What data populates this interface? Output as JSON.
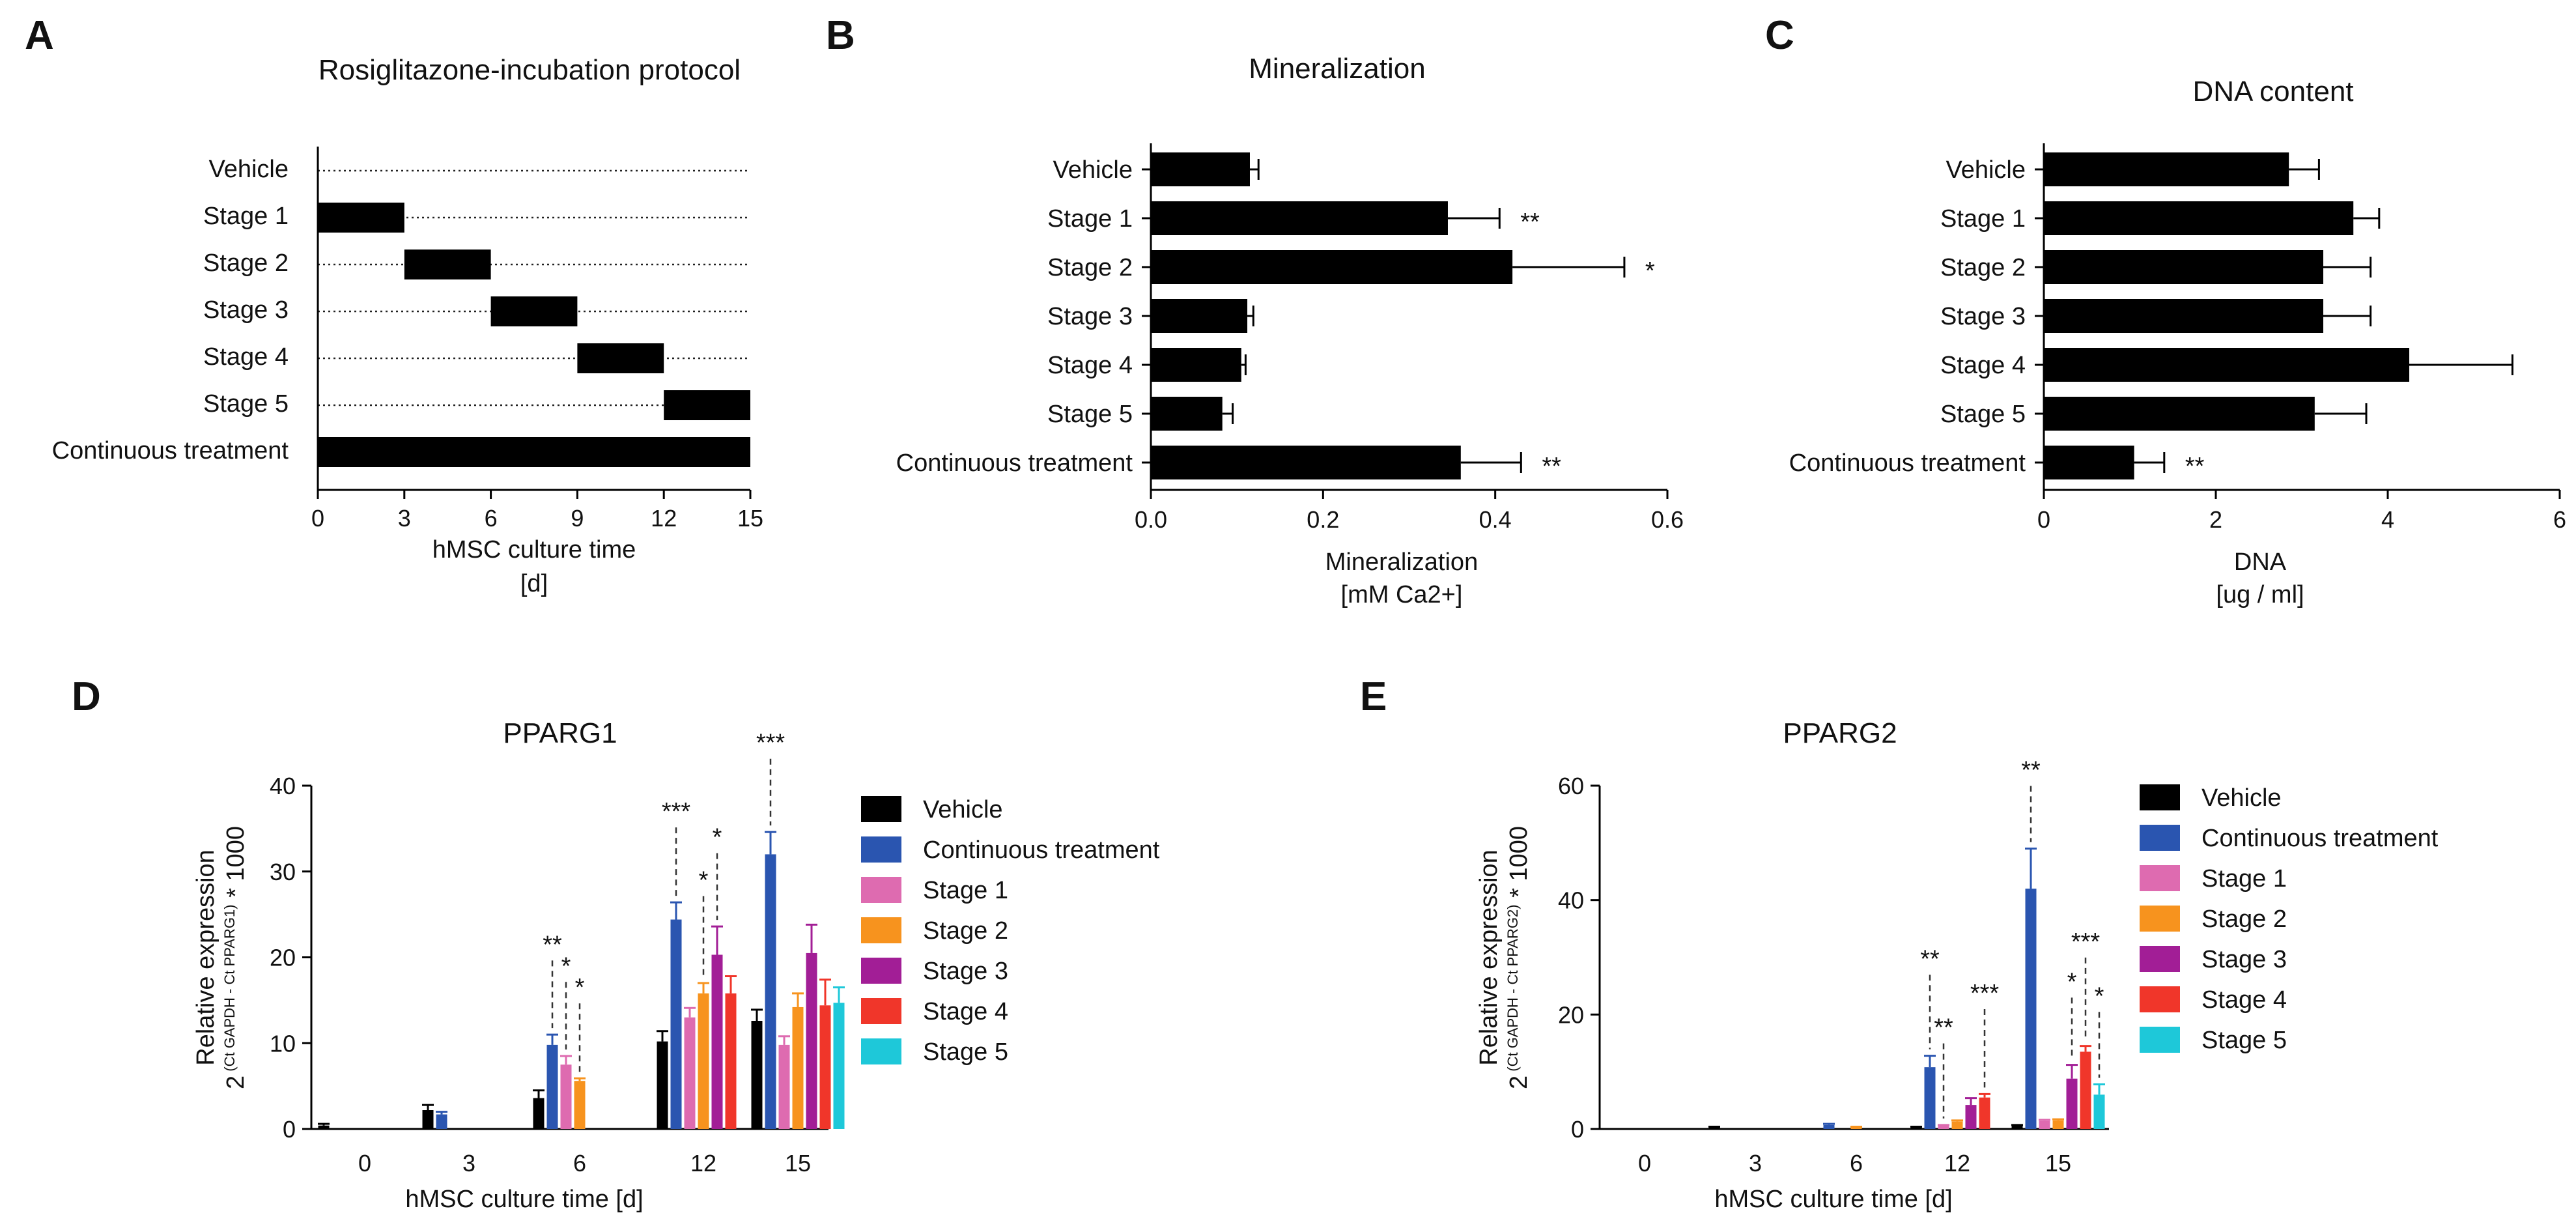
{
  "colors": {
    "bar": "#000000",
    "vehicle": "#000000",
    "continuous": "#2a55b0",
    "stage1": "#de6bb0",
    "stage2": "#f7931e",
    "stage3": "#a21e96",
    "stage4": "#f0362a",
    "stage5": "#1ec8d9"
  },
  "chart_data": [
    {
      "panel": "A",
      "type": "gantt",
      "title": "Rosiglitazone-incubation protocol",
      "xlabel": "hMSC culture time",
      "xunit": "[d]",
      "xlim": [
        0,
        15
      ],
      "xticks": [
        "0",
        "3",
        "6",
        "9",
        "12",
        "15"
      ],
      "rows": [
        {
          "label": "Vehicle",
          "start": null,
          "end": null
        },
        {
          "label": "Stage 1",
          "start": 0,
          "end": 3
        },
        {
          "label": "Stage 2",
          "start": 3,
          "end": 6
        },
        {
          "label": "Stage 3",
          "start": 6,
          "end": 9
        },
        {
          "label": "Stage 4",
          "start": 9,
          "end": 12
        },
        {
          "label": "Stage 5",
          "start": 12,
          "end": 15
        },
        {
          "label": "Continuous treatment",
          "start": 0,
          "end": 15
        }
      ]
    },
    {
      "panel": "B",
      "type": "bar",
      "orientation": "horizontal",
      "title": "Mineralization",
      "xlabel": "Mineralization",
      "xunit": "[mM Ca2+]",
      "xlim": [
        0,
        0.6
      ],
      "xticks": [
        "0.0",
        "0.2",
        "0.4",
        "0.6"
      ],
      "categories": [
        "Vehicle",
        "Stage 1",
        "Stage 2",
        "Stage 3",
        "Stage 4",
        "Stage 5",
        "Continuous treatment"
      ],
      "values": [
        0.115,
        0.345,
        0.42,
        0.112,
        0.105,
        0.083,
        0.36
      ],
      "errors": [
        0.01,
        0.06,
        0.13,
        0.007,
        0.005,
        0.012,
        0.07
      ],
      "significance": [
        "",
        "**",
        "*",
        "",
        "",
        "",
        "**"
      ]
    },
    {
      "panel": "C",
      "type": "bar",
      "orientation": "horizontal",
      "title": "DNA content",
      "xlabel": "DNA",
      "xunit": "[ug / ml]",
      "xlim": [
        0,
        6
      ],
      "xticks": [
        "0",
        "2",
        "4",
        "6"
      ],
      "categories": [
        "Vehicle",
        "Stage 1",
        "Stage 2",
        "Stage 3",
        "Stage 4",
        "Stage 5",
        "Continuous treatment"
      ],
      "values": [
        2.85,
        3.6,
        3.25,
        3.25,
        4.25,
        3.15,
        1.05
      ],
      "errors": [
        0.35,
        0.3,
        0.55,
        0.55,
        1.2,
        0.6,
        0.35
      ],
      "significance": [
        "",
        "",
        "",
        "",
        "",
        "",
        "**"
      ]
    },
    {
      "panel": "D",
      "type": "bar",
      "title": "PPARG1",
      "ylabel": "Relative expression",
      "ylabel_main": "2",
      "ylabel_exp": "(Ct GAPDH - Ct PPARG1)",
      "ylabel_suffix": " * 1000",
      "xlabel": "hMSC culture time [d]",
      "ylim": [
        0,
        40
      ],
      "yticks": [
        "0",
        "10",
        "20",
        "30",
        "40"
      ],
      "categories": [
        "0",
        "3",
        "6",
        "12",
        "15"
      ],
      "series": [
        {
          "name": "Vehicle",
          "key": "vehicle",
          "values": [
            0.4,
            2.2,
            3.6,
            10.2,
            12.6
          ],
          "errors": [
            0.2,
            0.6,
            0.9,
            1.2,
            1.3
          ]
        },
        {
          "name": "Continuous treatment",
          "key": "continuous",
          "values": [
            null,
            1.7,
            9.8,
            24.4,
            32.0
          ],
          "errors": [
            null,
            0.3,
            1.2,
            2.0,
            2.6
          ]
        },
        {
          "name": "Stage 1",
          "key": "stage1",
          "values": [
            null,
            null,
            7.5,
            13.0,
            9.8
          ],
          "errors": [
            null,
            null,
            1.0,
            1.1,
            1.0
          ]
        },
        {
          "name": "Stage 2",
          "key": "stage2",
          "values": [
            null,
            null,
            5.6,
            15.8,
            14.2
          ],
          "errors": [
            null,
            null,
            0.3,
            1.2,
            1.6
          ]
        },
        {
          "name": "Stage 3",
          "key": "stage3",
          "values": [
            null,
            null,
            null,
            20.3,
            20.5
          ],
          "errors": [
            null,
            null,
            null,
            3.3,
            3.3
          ]
        },
        {
          "name": "Stage 4",
          "key": "stage4",
          "values": [
            null,
            null,
            null,
            15.8,
            14.4
          ],
          "errors": [
            null,
            null,
            null,
            2.0,
            3.0
          ]
        },
        {
          "name": "Stage 5",
          "key": "stage5",
          "values": [
            null,
            null,
            null,
            null,
            14.7
          ],
          "errors": [
            null,
            null,
            null,
            null,
            1.8
          ]
        }
      ],
      "annotations": [
        {
          "text": "**",
          "category": "6",
          "series": "Continuous treatment",
          "level": 21.0
        },
        {
          "text": "*",
          "category": "6",
          "series": "Stage 1",
          "level": 18.5
        },
        {
          "text": "*",
          "category": "6",
          "series": "Stage 2",
          "level": 16.0
        },
        {
          "text": "***",
          "category": "12",
          "series": "Continuous treatment",
          "level": 36.5
        },
        {
          "text": "*",
          "category": "12",
          "series": "Stage 2",
          "level": 28.5
        },
        {
          "text": "*",
          "category": "12",
          "series": "Stage 3",
          "level": 33.5
        },
        {
          "text": "***",
          "category": "15",
          "series": "Continuous treatment",
          "level": 44.5
        }
      ]
    },
    {
      "panel": "E",
      "type": "bar",
      "title": "PPARG2",
      "ylabel": "Relative expression",
      "ylabel_main": "2",
      "ylabel_exp": "(Ct GAPDH - Ct PPARG2)",
      "ylabel_suffix": " * 1000",
      "xlabel": "hMSC culture time [d]",
      "ylim": [
        0,
        60
      ],
      "yticks": [
        "0",
        "20",
        "40",
        "60"
      ],
      "categories": [
        "0",
        "3",
        "6",
        "12",
        "15"
      ],
      "series": [
        {
          "name": "Vehicle",
          "key": "vehicle",
          "values": [
            null,
            0.3,
            null,
            0.3,
            0.6
          ],
          "errors": [
            null,
            0.1,
            null,
            0.1,
            0.1
          ]
        },
        {
          "name": "Continuous treatment",
          "key": "continuous",
          "values": [
            null,
            null,
            0.7,
            10.8,
            42.0
          ],
          "errors": [
            null,
            null,
            0.2,
            2.0,
            7.0
          ]
        },
        {
          "name": "Stage 1",
          "key": "stage1",
          "values": [
            null,
            null,
            null,
            0.6,
            1.4
          ],
          "errors": [
            null,
            null,
            null,
            0.1,
            0.2
          ]
        },
        {
          "name": "Stage 2",
          "key": "stage2",
          "values": [
            null,
            null,
            0.3,
            1.3,
            1.5
          ],
          "errors": [
            null,
            null,
            0.1,
            0.2,
            0.2
          ]
        },
        {
          "name": "Stage 3",
          "key": "stage3",
          "values": [
            null,
            null,
            null,
            4.2,
            8.8
          ],
          "errors": [
            null,
            null,
            null,
            1.2,
            2.4
          ]
        },
        {
          "name": "Stage 4",
          "key": "stage4",
          "values": [
            null,
            null,
            null,
            5.5,
            13.5
          ],
          "errors": [
            null,
            null,
            null,
            0.6,
            1.0
          ]
        },
        {
          "name": "Stage 5",
          "key": "stage5",
          "values": [
            null,
            null,
            null,
            null,
            6.0
          ],
          "errors": [
            null,
            null,
            null,
            null,
            1.8
          ]
        }
      ],
      "annotations": [
        {
          "text": "**",
          "category": "12",
          "series": "Continuous treatment",
          "level": 29.0
        },
        {
          "text": "**",
          "category": "12",
          "series": "Stage 1",
          "level": 17.0
        },
        {
          "text": "***",
          "category": "12",
          "series": "Stage 4",
          "level": 23.0
        },
        {
          "text": "**",
          "category": "15",
          "series": "Continuous treatment",
          "level": 62.0
        },
        {
          "text": "*",
          "category": "15",
          "series": "Stage 3",
          "level": 25.0
        },
        {
          "text": "***",
          "category": "15",
          "series": "Stage 4",
          "level": 32.0
        },
        {
          "text": "*",
          "category": "15",
          "series": "Stage 5",
          "level": 22.5
        }
      ]
    }
  ],
  "panel_labels": {
    "A": "A",
    "B": "B",
    "C": "C",
    "D": "D",
    "E": "E"
  }
}
